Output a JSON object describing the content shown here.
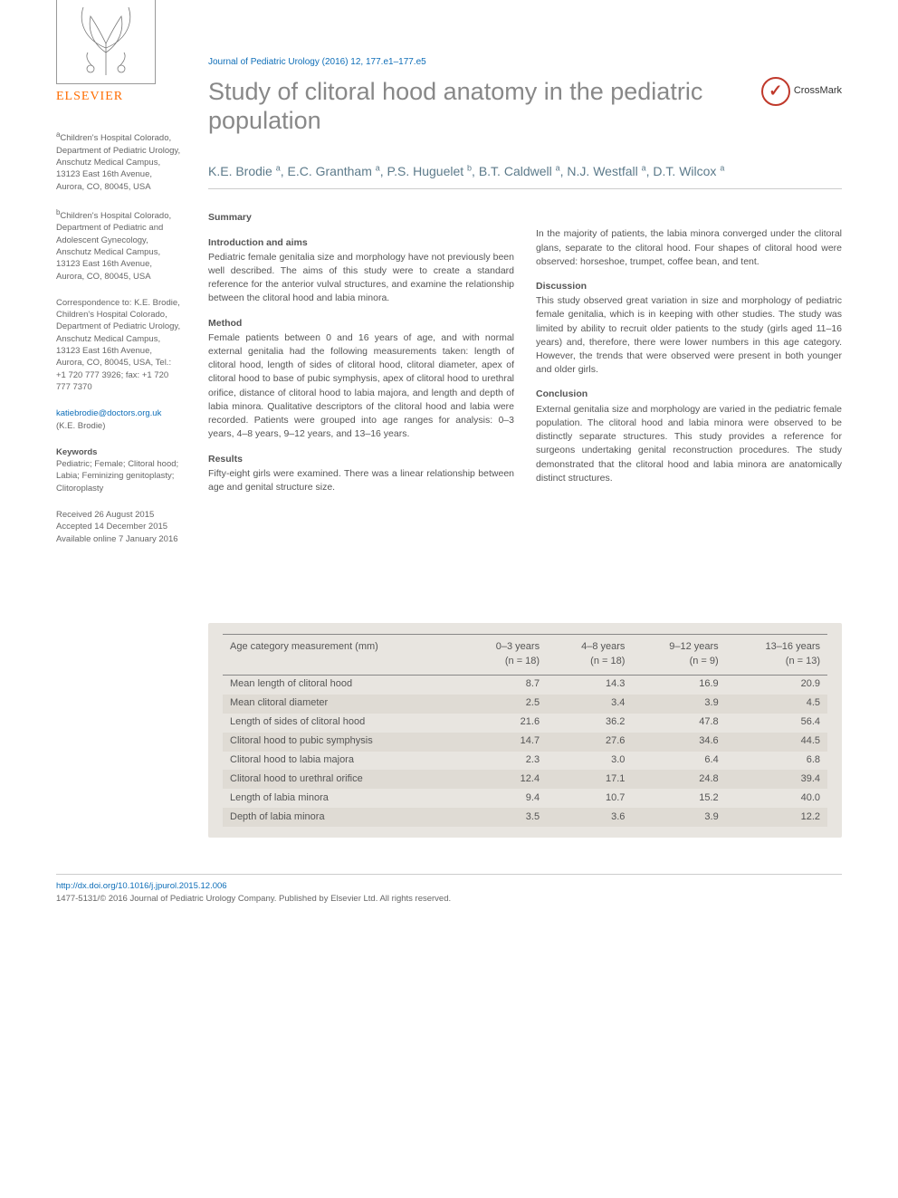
{
  "journal_ref": "Journal of Pediatric Urology (2016) 12, 177.e1–177.e5",
  "title": "Study of clitoral hood anatomy in the pediatric population",
  "crossmark_label": "CrossMark",
  "authors_html": "K.E. Brodie <sup>a</sup>, E.C. Grantham <sup>a</sup>, P.S. Huguelet <sup>b</sup>, B.T. Caldwell <sup>a</sup>, N.J. Westfall <sup>a</sup>, D.T. Wilcox <sup>a</sup>",
  "publisher": "ELSEVIER",
  "sidebar": {
    "affil_a": "<sup>a</sup>Children's Hospital Colorado, Department of Pediatric Urology, Anschutz Medical Campus, 13123 East 16th Avenue, Aurora, CO, 80045, USA",
    "affil_b": "<sup>b</sup>Children's Hospital Colorado, Department of Pediatric and Adolescent Gynecology, Anschutz Medical Campus, 13123 East 16th Avenue, Aurora, CO, 80045, USA",
    "corr": "Correspondence to: K.E. Brodie, Children's Hospital Colorado, Department of Pediatric Urology, Anschutz Medical Campus, 13123 East 16th Avenue, Aurora, CO, 80045, USA, Tel.: +1 720 777 3926; fax: +1 720 777 7370",
    "email": "katiebrodie@doctors.org.uk",
    "email_name": "(K.E. Brodie)",
    "keywords_label": "Keywords",
    "keywords": "Pediatric; Female; Clitoral hood; Labia; Feminizing genitoplasty; Clitoroplasty",
    "dates": "Received 26 August 2015\nAccepted 14 December 2015\nAvailable online 7 January 2016"
  },
  "summary": {
    "head": "Summary",
    "intro_head": "Introduction and aims",
    "intro": "Pediatric female genitalia size and morphology have not previously been well described. The aims of this study were to create a standard reference for the anterior vulval structures, and examine the relationship between the clitoral hood and labia minora.",
    "method_head": "Method",
    "method": "Female patients between 0 and 16 years of age, and with normal external genitalia had the following measurements taken: length of clitoral hood, length of sides of clitoral hood, clitoral diameter, apex of clitoral hood to base of pubic symphysis, apex of clitoral hood to urethral orifice, distance of clitoral hood to labia majora, and length and depth of labia minora. Qualitative descriptors of the clitoral hood and labia were recorded. Patients were grouped into age ranges for analysis: 0–3 years, 4–8 years, 9–12 years, and 13–16 years.",
    "results_head": "Results",
    "results1": "Fifty-eight girls were examined. There was a linear relationship between age and genital structure size.",
    "results2": "In the majority of patients, the labia minora converged under the clitoral glans, separate to the clitoral hood. Four shapes of clitoral hood were observed: horseshoe, trumpet, coffee bean, and tent.",
    "discussion_head": "Discussion",
    "discussion": "This study observed great variation in size and morphology of pediatric female genitalia, which is in keeping with other studies. The study was limited by ability to recruit older patients to the study (girls aged 11–16 years) and, therefore, there were lower numbers in this age category. However, the trends that were observed were present in both younger and older girls.",
    "conclusion_head": "Conclusion",
    "conclusion": "External genitalia size and morphology are varied in the pediatric female population. The clitoral hood and labia minora were observed to be distinctly separate structures. This study provides a reference for surgeons undertaking genital reconstruction procedures. The study demonstrated that the clitoral hood and labia minora are anatomically distinct structures."
  },
  "table": {
    "background": "#e8e5e0",
    "row_alt": "#dfdbd4",
    "columns": [
      "Age category measurement (mm)",
      "0–3 years (n = 18)",
      "4–8 years (n = 18)",
      "9–12 years (n = 9)",
      "13–16 years (n = 13)"
    ],
    "rows": [
      [
        "Mean length of clitoral hood",
        "8.7",
        "14.3",
        "16.9",
        "20.9"
      ],
      [
        "Mean clitoral diameter",
        "2.5",
        "3.4",
        "3.9",
        "4.5"
      ],
      [
        "Length of sides of clitoral hood",
        "21.6",
        "36.2",
        "47.8",
        "56.4"
      ],
      [
        "Clitoral hood to pubic symphysis",
        "14.7",
        "27.6",
        "34.6",
        "44.5"
      ],
      [
        "Clitoral hood to labia majora",
        "2.3",
        "3.0",
        "6.4",
        "6.8"
      ],
      [
        "Clitoral hood to urethral orifice",
        "12.4",
        "17.1",
        "24.8",
        "39.4"
      ],
      [
        "Length of labia minora",
        "9.4",
        "10.7",
        "15.2",
        "40.0"
      ],
      [
        "Depth of labia minora",
        "3.5",
        "3.6",
        "3.9",
        "12.2"
      ]
    ]
  },
  "footer": {
    "doi": "http://dx.doi.org/10.1016/j.jpurol.2015.12.006",
    "copyright": "1477-5131/© 2016 Journal of Pediatric Urology Company. Published by Elsevier Ltd. All rights reserved."
  }
}
